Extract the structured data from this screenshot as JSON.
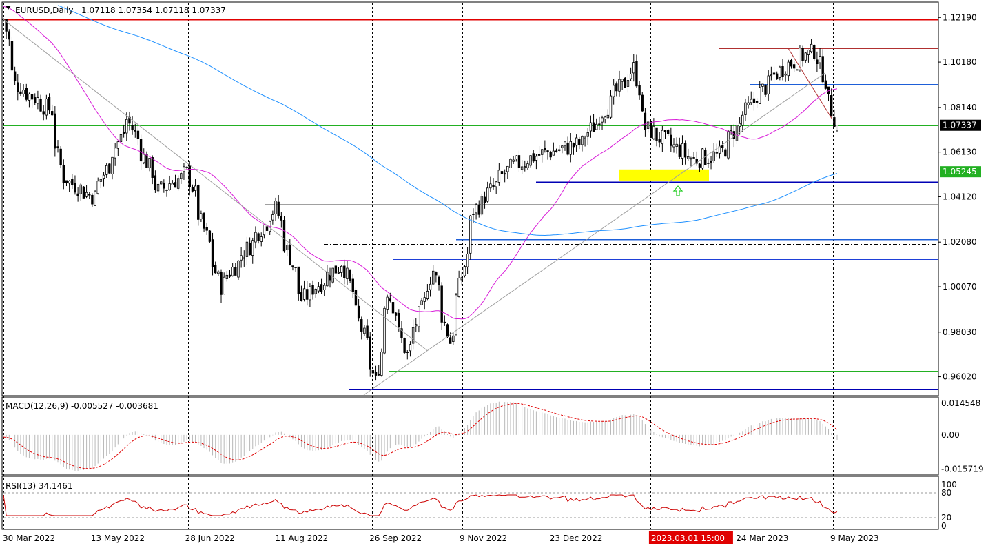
{
  "header": {
    "symbol": "EURUSD,Daily",
    "ohlc": "1.07118 1.07354 1.07118 1.07337"
  },
  "macd_panel": {
    "title": "MACD(12,26,9) -0.005527 -0.003681"
  },
  "rsi_panel": {
    "title": "RSI(13) 34.1461"
  },
  "price_labels": [
    "1.12190",
    "1.10180",
    "1.08140",
    "1.06130",
    "1.04120",
    "1.02080",
    "1.00070",
    "0.98030",
    "0.96020"
  ],
  "current_price_tag": "1.07337",
  "level_tag": "1.05245",
  "macd_labels": [
    "0.014548",
    "0.00",
    "-0.015719"
  ],
  "rsi_labels": [
    "100",
    "80",
    "20",
    "0"
  ],
  "date_labels": [
    "30 Mar 2022",
    "13 May 2022",
    "28 Jun 2022",
    "11 Aug 2022",
    "26 Sep 2022",
    "9 Nov 2022",
    "23 Dec 2022",
    "2023.03.01 15:00",
    "24 Mar 2023",
    "9 May 2023"
  ],
  "colors": {
    "bull": "#ffffff",
    "bear": "#000000",
    "ma_pink": "#d81bd8",
    "ma_blue": "#1e90ff",
    "support": "#0000b4",
    "resistance": "#e00000",
    "green_line": "#22b022",
    "highlight": "#ffff00",
    "signal": "#e00000",
    "arrow": "#22cc22"
  },
  "chart_data": {
    "type": "candlestick",
    "symbol": "EURUSD",
    "timeframe": "Daily",
    "ylim": [
      0.952,
      1.1285
    ],
    "x_start": "30 Mar 2022",
    "x_end": "11 May 2023",
    "last_ohlc": {
      "open": 1.07118,
      "high": 1.07354,
      "low": 1.07118,
      "close": 1.07337
    },
    "close_path": [
      {
        "date": "30 Mar 2022",
        "close": 1.121
      },
      {
        "date": "5 Apr 2022",
        "close": 1.092
      },
      {
        "date": "22 Apr 2022",
        "close": 1.08
      },
      {
        "date": "28 Apr 2022",
        "close": 1.05
      },
      {
        "date": "13 May 2022",
        "close": 1.041
      },
      {
        "date": "30 May 2022",
        "close": 1.076
      },
      {
        "date": "14 Jun 2022",
        "close": 1.044
      },
      {
        "date": "28 Jun 2022",
        "close": 1.052
      },
      {
        "date": "14 Jul 2022",
        "close": 1.001
      },
      {
        "date": "10 Aug 2022",
        "close": 1.036
      },
      {
        "date": "23 Aug 2022",
        "close": 0.995
      },
      {
        "date": "12 Sep 2022",
        "close": 1.012
      },
      {
        "date": "28 Sep 2022",
        "close": 0.958
      },
      {
        "date": "4 Oct 2022",
        "close": 0.999
      },
      {
        "date": "13 Oct 2022",
        "close": 0.97
      },
      {
        "date": "26 Oct 2022",
        "close": 1.008
      },
      {
        "date": "3 Nov 2022",
        "close": 0.976
      },
      {
        "date": "15 Nov 2022",
        "close": 1.035
      },
      {
        "date": "2 Dec 2022",
        "close": 1.054
      },
      {
        "date": "16 Dec 2022",
        "close": 1.06
      },
      {
        "date": "6 Jan 2023",
        "close": 1.065
      },
      {
        "date": "1 Feb 2023",
        "close": 1.099
      },
      {
        "date": "7 Feb 2023",
        "close": 1.072
      },
      {
        "date": "2 Mar 2023",
        "close": 1.058
      },
      {
        "date": "15 Mar 2023",
        "close": 1.06
      },
      {
        "date": "31 Mar 2023",
        "close": 1.084
      },
      {
        "date": "14 Apr 2023",
        "close": 1.099
      },
      {
        "date": "26 Apr 2023",
        "close": 1.105
      },
      {
        "date": "1 May 2023",
        "close": 1.107
      },
      {
        "date": "11 May 2023",
        "close": 1.0734
      }
    ],
    "horizontal_levels": [
      {
        "value": 1.121,
        "color": "red"
      },
      {
        "value": 1.108,
        "color": "darkred"
      },
      {
        "value": 1.1095,
        "color": "darkred"
      },
      {
        "value": 1.0918,
        "color": "blue"
      },
      {
        "value": 1.07337,
        "color": "green"
      },
      {
        "value": 1.05245,
        "color": "green"
      },
      {
        "value": 1.048,
        "color": "navy"
      },
      {
        "value": 1.038,
        "color": "gray"
      },
      {
        "value": 1.022,
        "color": "blue"
      },
      {
        "value": 1.02,
        "color": "black-dashed"
      },
      {
        "value": 1.013,
        "color": "blue"
      },
      {
        "value": 0.963,
        "color": "green"
      },
      {
        "value": 0.9545,
        "color": "navy"
      }
    ],
    "macd": {
      "ylim": [
        -0.0175,
        0.0155
      ],
      "last_hist": -0.005527,
      "last_signal": -0.003681
    },
    "rsi": {
      "ylim": [
        0,
        100
      ],
      "levels": [
        80,
        20
      ],
      "last": 34.1461
    }
  }
}
